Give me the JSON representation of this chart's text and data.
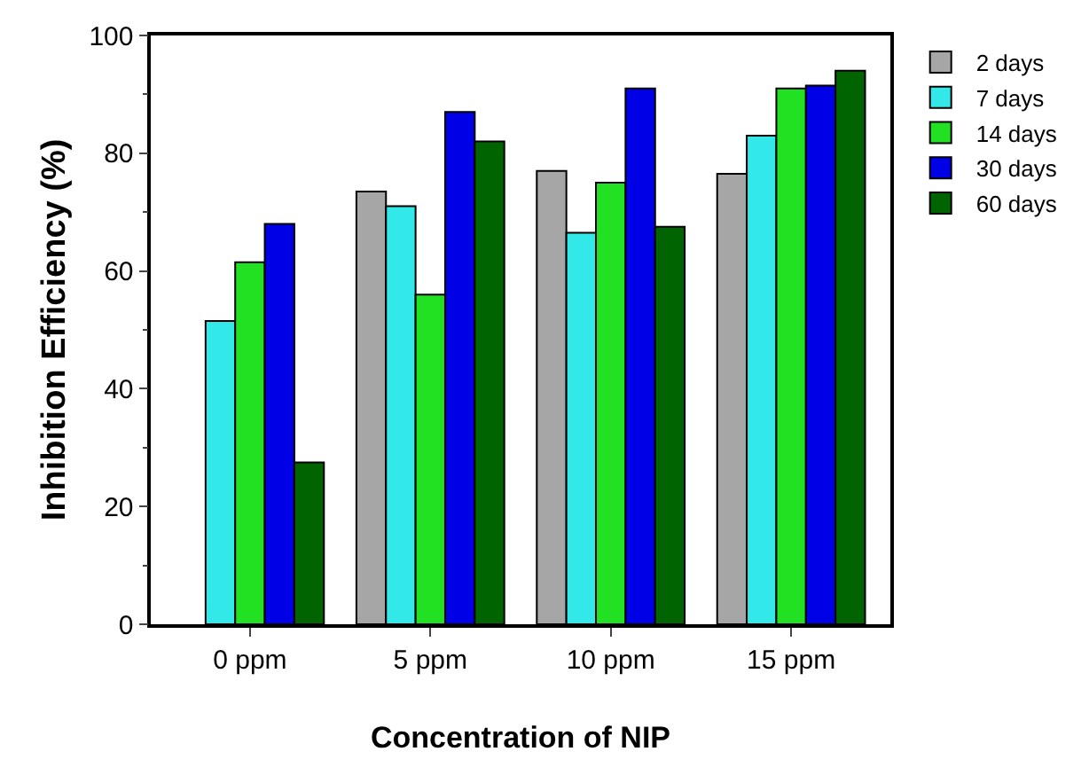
{
  "chart_data": {
    "type": "bar",
    "xlabel": "Concentration of NIP",
    "ylabel": "Inhibition Efficiency (%)",
    "categories": [
      "0 ppm",
      "5 ppm",
      "10 ppm",
      "15 ppm"
    ],
    "series": [
      {
        "name": "2 days",
        "color": "#a6a6a6",
        "values": [
          null,
          73.5,
          77,
          76.5
        ]
      },
      {
        "name": "7 days",
        "color": "#33e8e8",
        "values": [
          51.5,
          71,
          66.5,
          83
        ]
      },
      {
        "name": "14 days",
        "color": "#22e022",
        "values": [
          61.5,
          56,
          75,
          91
        ]
      },
      {
        "name": "30 days",
        "color": "#0000e6",
        "values": [
          68,
          87,
          91,
          91.5
        ]
      },
      {
        "name": "60 days",
        "color": "#006400",
        "values": [
          27.5,
          82,
          67.5,
          94
        ]
      }
    ],
    "ylim": [
      0,
      100
    ],
    "yticks": [
      0,
      20,
      40,
      60,
      80,
      100
    ],
    "grid": false,
    "legend": "top right"
  }
}
